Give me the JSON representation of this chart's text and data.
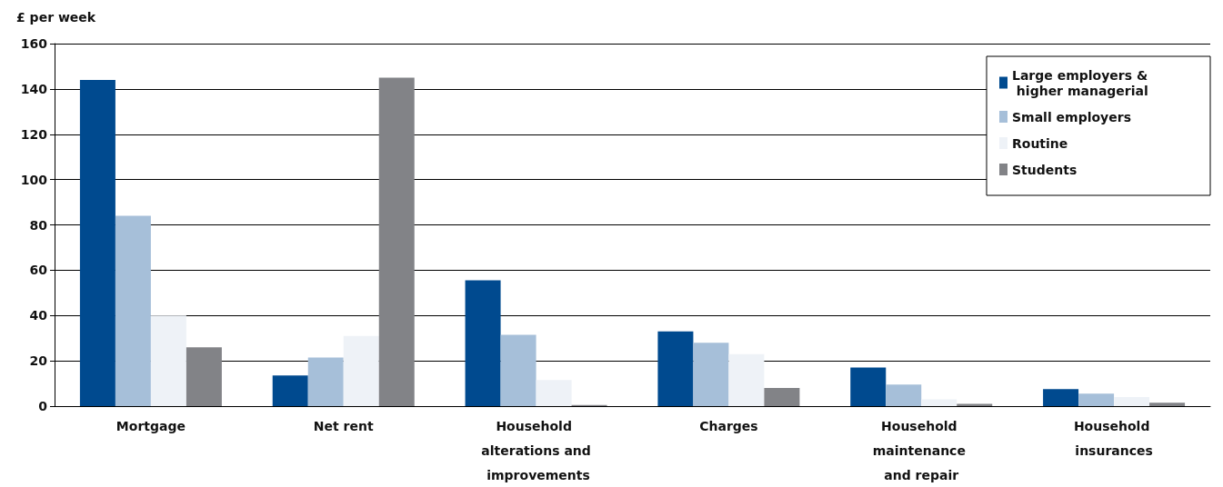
{
  "chart_data": {
    "type": "bar",
    "ylabel": "£ per week",
    "categories": [
      "Mortgage",
      "Net rent",
      "Household alterations and improvements",
      "Charges",
      "Household maintenance and repair",
      "Household insurances"
    ],
    "series": [
      {
        "name": "Large employers & higher managerial",
        "color": "#004a8f",
        "values": [
          144,
          13.5,
          55.5,
          33,
          17,
          7.5
        ]
      },
      {
        "name": "Small employers",
        "color": "#a6bfd9",
        "values": [
          84,
          21.5,
          31.5,
          28,
          9.5,
          5.5
        ]
      },
      {
        "name": "Routine",
        "color": "#eef2f7",
        "values": [
          40,
          31,
          11.5,
          23,
          3,
          4
        ]
      },
      {
        "name": "Students",
        "color": "#828387",
        "values": [
          26,
          145,
          0.5,
          8,
          1,
          1.5
        ]
      }
    ],
    "ylim": [
      0,
      160
    ],
    "yticks": [
      0,
      20,
      40,
      60,
      80,
      100,
      120,
      140,
      160
    ],
    "grid": "y",
    "legend": "top right"
  }
}
